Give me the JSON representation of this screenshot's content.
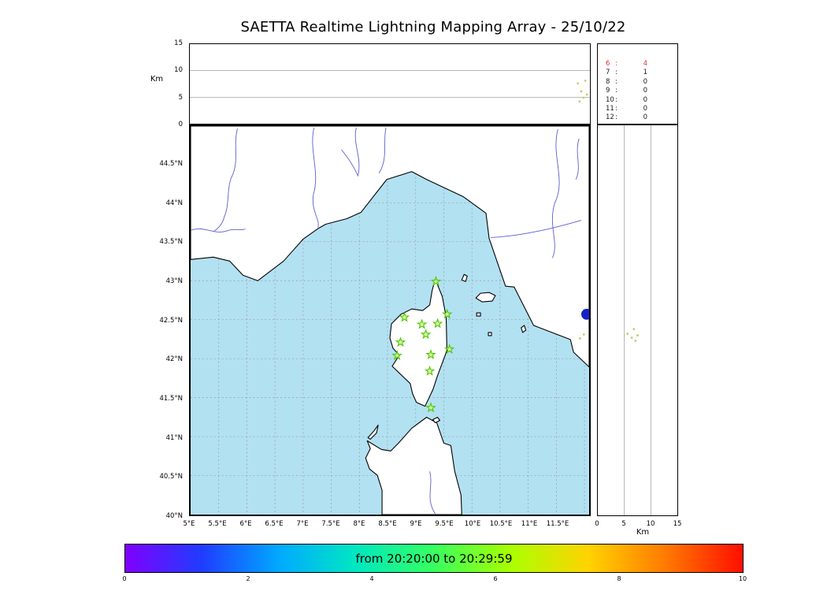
{
  "title": "SAETTA Realtime Lightning Mapping Array - 25/10/22",
  "altitude_panel": {
    "ylabel": "Km",
    "yticks": [
      "15",
      "10",
      "5",
      "0"
    ],
    "grid_values": [
      5,
      10
    ],
    "point_color": "#c9c96a",
    "source_points_lon_km": [
      [
        11.87,
        7.6
      ],
      [
        11.9,
        4.2
      ],
      [
        11.93,
        6.1
      ],
      [
        11.97,
        4.9
      ],
      [
        12.0,
        8.1
      ],
      [
        12.03,
        5.5
      ]
    ]
  },
  "counts_panel": {
    "separator": ":",
    "rows": [
      {
        "label": "6",
        "value": "4",
        "color": "#e03030"
      },
      {
        "label": "7",
        "value": "1",
        "color": "#1a1a1a"
      },
      {
        "label": "8",
        "value": "0",
        "color": "#1a1a1a"
      },
      {
        "label": "9",
        "value": "0",
        "color": "#1a1a1a"
      },
      {
        "label": "10",
        "value": "0",
        "color": "#1a1a1a"
      },
      {
        "label": "11",
        "value": "0",
        "color": "#1a1a1a"
      },
      {
        "label": "12",
        "value": "0",
        "color": "#1a1a1a"
      }
    ]
  },
  "map_panel": {
    "lat_ticks": [
      "44.5°N",
      "44°N",
      "43.5°N",
      "43°N",
      "42.5°N",
      "42°N",
      "41.5°N",
      "41°N",
      "40.5°N",
      "40°N"
    ],
    "lon_ticks": [
      "5°E",
      "5.5°E",
      "6°E",
      "6.5°E",
      "7°E",
      "7.5°E",
      "8°E",
      "8.5°E",
      "9°E",
      "9.5°E",
      "10°E",
      "10.5°E",
      "11°E",
      "11.5°E"
    ],
    "lon_range": [
      5,
      12.083
    ],
    "lat_range": [
      40,
      44.984
    ],
    "sea_color": "#b2e1f2",
    "station_color": "#4fc400",
    "stations_lonlat": [
      [
        9.36,
        42.99
      ],
      [
        8.8,
        42.53
      ],
      [
        9.11,
        42.44
      ],
      [
        9.39,
        42.45
      ],
      [
        9.56,
        42.57
      ],
      [
        9.18,
        42.31
      ],
      [
        8.73,
        42.21
      ],
      [
        9.6,
        42.12
      ],
      [
        8.67,
        42.04
      ],
      [
        9.27,
        42.05
      ],
      [
        9.25,
        41.84
      ],
      [
        9.27,
        41.37
      ]
    ],
    "source_dot": {
      "lon": 12.04,
      "lat": 42.57,
      "color": "#1520c8",
      "radius": 7
    },
    "minor_points_lonlat": [
      [
        11.92,
        42.26
      ],
      [
        11.99,
        42.31
      ]
    ]
  },
  "hist_panel": {
    "xticks": [
      "0",
      "5",
      "10",
      "15"
    ],
    "xlabel": "Km",
    "grid_values": [
      5,
      10
    ],
    "source_points_km_lat": [
      [
        5.6,
        42.32
      ],
      [
        6.4,
        42.27
      ],
      [
        7.1,
        42.23
      ],
      [
        6.8,
        42.38
      ],
      [
        7.5,
        42.3
      ]
    ]
  },
  "colorbar": {
    "label": "from 20:20:00 to 20:29:59",
    "ticks": [
      "0",
      "2",
      "4",
      "6",
      "8",
      "10"
    ],
    "gradient": [
      "#8000ff",
      "#1f3dff",
      "#00aaff",
      "#00e8c0",
      "#37ff60",
      "#aaff00",
      "#ffd300",
      "#ff7a00",
      "#ff0f00"
    ]
  },
  "chart_data": {
    "type": "scatter",
    "title": "SAETTA Realtime Lightning Mapping Array - 25/10/22",
    "time_window": "from 20:20:00 to 20:29:59",
    "panels": [
      {
        "name": "altitude_vs_longitude",
        "ylabel": "Km",
        "ylim": [
          0,
          15
        ],
        "yticks": [
          0,
          5,
          10,
          15
        ],
        "xlim_deg_east": [
          5,
          12.08
        ],
        "grid": true,
        "points_lon_altkm": [
          [
            11.87,
            7.6
          ],
          [
            11.9,
            4.2
          ],
          [
            11.93,
            6.1
          ],
          [
            11.97,
            4.9
          ],
          [
            12.0,
            8.1
          ],
          [
            12.03,
            5.5
          ]
        ]
      },
      {
        "name": "source_counts",
        "rows": [
          [
            "6",
            4
          ],
          [
            "7",
            1
          ],
          [
            "8",
            0
          ],
          [
            "9",
            0
          ],
          [
            "10",
            0
          ],
          [
            "11",
            0
          ],
          [
            "12",
            0
          ]
        ],
        "highlight_row": "6"
      },
      {
        "name": "map",
        "region": "Corsica / NW Mediterranean",
        "xlim_deg_east": [
          5,
          12.08
        ],
        "ylim_deg_north": [
          40,
          44.98
        ],
        "xticks": [
          "5°E",
          "5.5°E",
          "6°E",
          "6.5°E",
          "7°E",
          "7.5°E",
          "8°E",
          "8.5°E",
          "9°E",
          "9.5°E",
          "10°E",
          "10.5°E",
          "11°E",
          "11.5°E"
        ],
        "yticks": [
          "40°N",
          "40.5°N",
          "41°N",
          "41.5°N",
          "42°N",
          "42.5°N",
          "43°N",
          "43.5°N",
          "44°N",
          "44.5°N"
        ],
        "station_markers_lonlat": [
          [
            9.36,
            42.99
          ],
          [
            8.8,
            42.53
          ],
          [
            9.11,
            42.44
          ],
          [
            9.39,
            42.45
          ],
          [
            9.56,
            42.57
          ],
          [
            9.18,
            42.31
          ],
          [
            8.73,
            42.21
          ],
          [
            9.6,
            42.12
          ],
          [
            8.67,
            42.04
          ],
          [
            9.27,
            42.05
          ],
          [
            9.25,
            41.84
          ],
          [
            9.27,
            41.37
          ]
        ],
        "recent_source_lonlat": [
          12.04,
          42.57
        ],
        "minor_sources_lonlat": [
          [
            11.92,
            42.26
          ],
          [
            11.99,
            42.31
          ]
        ],
        "grid": true
      },
      {
        "name": "altitude_vs_latitude",
        "xlabel": "Km",
        "xlim": [
          0,
          15
        ],
        "xticks": [
          0,
          5,
          10,
          15
        ],
        "points_altkm_lat": [
          [
            5.6,
            42.32
          ],
          [
            6.4,
            42.27
          ],
          [
            7.1,
            42.23
          ],
          [
            6.8,
            42.38
          ],
          [
            7.5,
            42.3
          ]
        ]
      },
      {
        "name": "time_colorbar",
        "label": "from 20:20:00 to 20:29:59",
        "ticks": [
          0,
          2,
          4,
          6,
          8,
          10
        ],
        "colormap": "rainbow",
        "legend_position": "bottom"
      }
    ]
  }
}
